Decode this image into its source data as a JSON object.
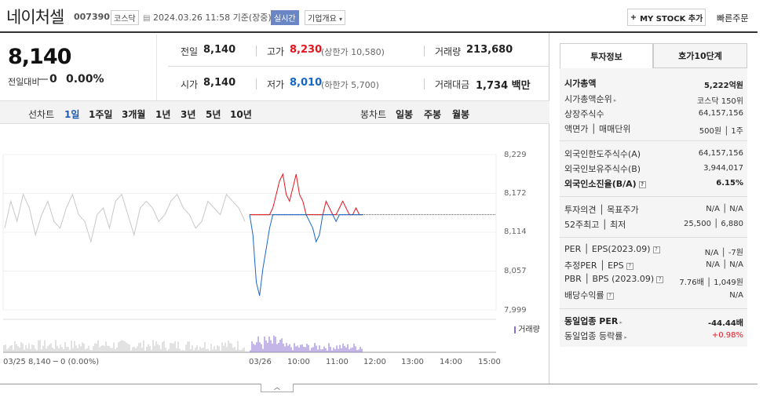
{
  "header": {
    "name": "네이처셀",
    "code": "007390",
    "market": "코스닥",
    "datetime": "2024.03.26 11:58",
    "basis": "기준(장중)",
    "live_badge": "실시간",
    "overview": "기업개요",
    "my_stock": "MY STOCK 추가",
    "fast_order": "빠른주문"
  },
  "quote": {
    "price": "8,140",
    "change_label": "전일대비",
    "change": "0",
    "change_pct": "0.00%",
    "prev_close_label": "전일",
    "prev_close": "8,140",
    "open_label": "시가",
    "open": "8,140",
    "high_label": "고가",
    "high": "8,230",
    "upper_limit_label": "(상한가",
    "upper_limit": "10,580)",
    "low_label": "저가",
    "low": "8,010",
    "lower_limit_label": "(하한가",
    "lower_limit": "5,700)",
    "volume_label": "거래량",
    "volume": "213,680",
    "amount_label": "거래대금",
    "amount": "1,734",
    "amount_unit": "백만"
  },
  "chart_tabs": {
    "line_label": "선차트",
    "line": [
      "1일",
      "1주일",
      "3개월",
      "1년",
      "3년",
      "5년",
      "10년"
    ],
    "selected": "1일",
    "candle_label": "봉차트",
    "candle": [
      "일봉",
      "주봉",
      "월봉"
    ]
  },
  "chart_data": {
    "type": "line",
    "y_ticks": [
      "8,229",
      "8,172",
      "8,114",
      "8,057",
      "7,999"
    ],
    "ylim": [
      7999,
      8229
    ],
    "x_ticks": [
      "03/26",
      "10:00",
      "11:00",
      "12:00",
      "13:00",
      "14:00",
      "15:00"
    ],
    "base_price": 8140,
    "prev_day_label": "03/25  8,140 ─ 0 (0.00%)",
    "volume_legend": "거래량",
    "series": [
      {
        "values": [
          8120,
          8160,
          8130,
          8170,
          8150,
          8110,
          8140,
          8160,
          8130,
          8120,
          8150,
          8170,
          8140,
          8130,
          8100,
          8140,
          8150,
          8120,
          8160,
          8170,
          8140,
          8110,
          8150,
          8160,
          8150,
          8130,
          8140,
          8160,
          8170,
          8150,
          8140,
          8120,
          8130,
          8160,
          8150,
          8140,
          8170,
          8160,
          8150,
          8130
        ]
      },
      {
        "values": [
          8140,
          8110,
          8040,
          8020,
          8060,
          8090,
          8120,
          8150,
          8170,
          8190,
          8200,
          8170,
          8160,
          8180,
          8200,
          8170,
          8160,
          8140,
          8130,
          8120,
          8100,
          8110,
          8140,
          8160,
          8150,
          8140,
          8130,
          8150,
          8160,
          8150,
          8140,
          8140,
          8150,
          8140,
          8140
        ]
      }
    ]
  },
  "info_tabs": [
    "투자정보",
    "호가10단계"
  ],
  "info": {
    "market_cap_label": "시가총액",
    "market_cap": "5,222억원",
    "cap_rank_label": "시가총액순위",
    "cap_rank": "코스닥 150위",
    "shares_label": "상장주식수",
    "shares": "64,157,156",
    "par_label": "액면가",
    "unit_label": "매매단위",
    "par_unit": "500원 │ 1주",
    "foreign_limit_label": "외국인한도주식수(A)",
    "foreign_limit": "64,157,156",
    "foreign_hold_label": "외국인보유주식수(B)",
    "foreign_hold": "3,944,017",
    "foreign_ratio_label": "외국인소진율(B/A)",
    "foreign_ratio": "6.15%",
    "opinion_label": "투자의견",
    "target_label": "목표주가",
    "opinion_target": "N/A │ N/A",
    "w52_high_label": "52주최고",
    "w52_low_label": "최저",
    "w52": "25,500 │ 6,880",
    "per_label": "PER",
    "eps_label": "EPS(2023.09)",
    "per_eps": "N/A │ -7원",
    "est_per_label": "추정PER",
    "est_eps_label": "EPS",
    "est_per_eps": "N/A │ N/A",
    "pbr_label": "PBR",
    "bps_label": "BPS (2023.09)",
    "pbr_bps": "7.76배 │ 1,049원",
    "div_label": "배당수익률",
    "div": "N/A",
    "ind_per_label": "동일업종 PER",
    "ind_per": "-44.44배",
    "ind_chg_label": "동일업종 등락률",
    "ind_chg": "+0.98%"
  },
  "colors": {
    "up": "#e4141f",
    "down": "#1667c4",
    "selected_tab": "#1f5bb6",
    "prev_line": "#c8c8c8",
    "volume": "#8a6fd0"
  }
}
